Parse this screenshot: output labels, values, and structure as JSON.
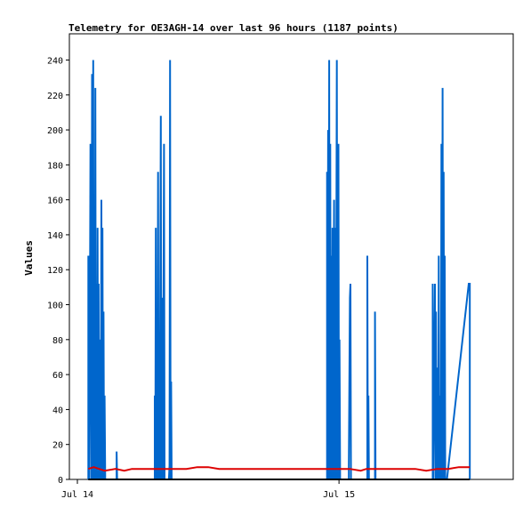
{
  "chart_data": {
    "type": "line",
    "title": "Telemetry for OE3AGH-14 over last 96 hours (1187 points)",
    "ylabel": "Values",
    "xlabel": "",
    "ylim": [
      0,
      255
    ],
    "y_ticks": [
      0,
      20,
      40,
      60,
      80,
      100,
      120,
      140,
      160,
      180,
      200,
      220,
      240
    ],
    "x_unit": "hours since Jul 14 00:00",
    "xlim": [
      0,
      36
    ],
    "x_ticks": [
      {
        "label": "Jul 14",
        "x": 0
      },
      {
        "label": "Jul 15",
        "x": 24
      }
    ],
    "grid": false,
    "legend": "none",
    "colors": {
      "blue": "#0066cc",
      "red": "#dd0000",
      "black": "#000000"
    },
    "series": [
      {
        "color": "blue",
        "points": [
          [
            1.0,
            0
          ],
          [
            1.0,
            128
          ],
          [
            1.1,
            0
          ],
          [
            1.2,
            192
          ],
          [
            1.3,
            0
          ],
          [
            1.35,
            232
          ],
          [
            1.4,
            0
          ],
          [
            1.45,
            240
          ],
          [
            1.5,
            0
          ],
          [
            1.55,
            128
          ],
          [
            1.6,
            0
          ],
          [
            1.65,
            224
          ],
          [
            1.7,
            0
          ],
          [
            1.75,
            112
          ],
          [
            1.8,
            0
          ],
          [
            1.85,
            144
          ],
          [
            1.9,
            0
          ],
          [
            1.95,
            112
          ],
          [
            2.0,
            0
          ],
          [
            2.1,
            80
          ],
          [
            2.15,
            0
          ],
          [
            2.2,
            160
          ],
          [
            2.25,
            0
          ],
          [
            2.3,
            144
          ],
          [
            2.35,
            0
          ],
          [
            2.4,
            96
          ],
          [
            2.45,
            0
          ],
          [
            2.5,
            48
          ],
          [
            2.55,
            0
          ],
          [
            3.6,
            0
          ],
          [
            3.6,
            16
          ],
          [
            3.65,
            0
          ],
          [
            7.1,
            0
          ],
          [
            7.1,
            48
          ],
          [
            7.15,
            0
          ],
          [
            7.2,
            144
          ],
          [
            7.25,
            0
          ],
          [
            7.3,
            64
          ],
          [
            7.35,
            0
          ],
          [
            7.4,
            176
          ],
          [
            7.45,
            0
          ],
          [
            7.5,
            48
          ],
          [
            7.55,
            0
          ],
          [
            7.65,
            208
          ],
          [
            7.7,
            0
          ],
          [
            7.8,
            104
          ],
          [
            7.85,
            0
          ],
          [
            7.95,
            192
          ],
          [
            8.0,
            0
          ],
          [
            8.4,
            0
          ],
          [
            8.45,
            8
          ],
          [
            8.5,
            240
          ],
          [
            8.55,
            0
          ],
          [
            8.6,
            56
          ],
          [
            8.65,
            0
          ],
          [
            22.9,
            0
          ],
          [
            22.9,
            176
          ],
          [
            22.95,
            0
          ],
          [
            23.0,
            200
          ],
          [
            23.05,
            0
          ],
          [
            23.1,
            240
          ],
          [
            23.15,
            0
          ],
          [
            23.2,
            192
          ],
          [
            23.25,
            0
          ],
          [
            23.3,
            128
          ],
          [
            23.35,
            0
          ],
          [
            23.4,
            144
          ],
          [
            23.45,
            0
          ],
          [
            23.55,
            160
          ],
          [
            23.6,
            0
          ],
          [
            23.65,
            144
          ],
          [
            23.7,
            0
          ],
          [
            23.8,
            240
          ],
          [
            23.85,
            0
          ],
          [
            23.95,
            192
          ],
          [
            24.0,
            0
          ],
          [
            24.05,
            80
          ],
          [
            24.1,
            0
          ],
          [
            24.9,
            0
          ],
          [
            24.9,
            8
          ],
          [
            25.0,
            104
          ],
          [
            25.05,
            112
          ],
          [
            25.1,
            0
          ],
          [
            26.6,
            0
          ],
          [
            26.6,
            128
          ],
          [
            26.65,
            0
          ],
          [
            26.7,
            48
          ],
          [
            26.75,
            0
          ],
          [
            27.3,
            0
          ],
          [
            27.3,
            96
          ],
          [
            27.35,
            0
          ],
          [
            32.6,
            0
          ],
          [
            32.6,
            112
          ],
          [
            32.65,
            0
          ],
          [
            32.8,
            112
          ],
          [
            32.85,
            0
          ],
          [
            32.9,
            96
          ],
          [
            32.95,
            0
          ],
          [
            33.05,
            64
          ],
          [
            33.1,
            0
          ],
          [
            33.15,
            128
          ],
          [
            33.2,
            0
          ],
          [
            33.3,
            48
          ],
          [
            33.35,
            0
          ],
          [
            33.4,
            192
          ],
          [
            33.45,
            0
          ],
          [
            33.5,
            224
          ],
          [
            33.55,
            0
          ],
          [
            33.6,
            176
          ],
          [
            33.65,
            0
          ],
          [
            33.7,
            128
          ],
          [
            33.75,
            0
          ],
          [
            33.9,
            0
          ],
          [
            35.9,
            112
          ],
          [
            36.0,
            112
          ],
          [
            36.0,
            0
          ]
        ]
      },
      {
        "color": "red",
        "points": [
          [
            1.0,
            6
          ],
          [
            1.5,
            7
          ],
          [
            2.0,
            6
          ],
          [
            2.5,
            5
          ],
          [
            3.5,
            6
          ],
          [
            4.3,
            5
          ],
          [
            5.0,
            6
          ],
          [
            6.0,
            6
          ],
          [
            7.0,
            6
          ],
          [
            8.0,
            6
          ],
          [
            9.0,
            6
          ],
          [
            10.0,
            6
          ],
          [
            11.0,
            7
          ],
          [
            12.0,
            7
          ],
          [
            13.0,
            6
          ],
          [
            14.0,
            6
          ],
          [
            15.0,
            6
          ],
          [
            17.0,
            6
          ],
          [
            19.0,
            6
          ],
          [
            21.0,
            6
          ],
          [
            22.0,
            6
          ],
          [
            23.0,
            6
          ],
          [
            24.0,
            6
          ],
          [
            25.0,
            6
          ],
          [
            26.0,
            5
          ],
          [
            26.5,
            6
          ],
          [
            27.0,
            6
          ],
          [
            28.0,
            6
          ],
          [
            29.0,
            6
          ],
          [
            30.0,
            6
          ],
          [
            31.0,
            6
          ],
          [
            32.0,
            5
          ],
          [
            33.0,
            6
          ],
          [
            34.0,
            6
          ],
          [
            35.0,
            7
          ],
          [
            36.0,
            7
          ]
        ]
      },
      {
        "color": "black",
        "points": [
          [
            1.0,
            0
          ],
          [
            36.0,
            0
          ]
        ]
      }
    ]
  }
}
